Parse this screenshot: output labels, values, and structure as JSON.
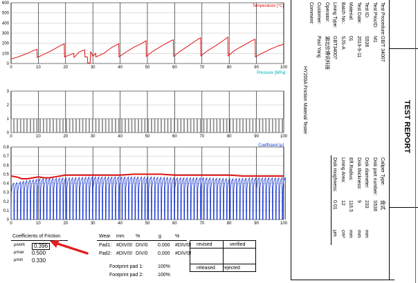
{
  "chart_data": [
    {
      "type": "line",
      "title": "",
      "xlabel": "",
      "ylabel": "Temperature [°C]",
      "xlim": [
        0,
        100
      ],
      "ylim": [
        0,
        600
      ],
      "xticks": [
        0,
        10,
        20,
        30,
        40,
        50,
        60,
        70,
        80,
        90,
        100
      ],
      "yticks": [
        0,
        100,
        200,
        300,
        400,
        500,
        600
      ],
      "grid": true,
      "series": [
        {
          "name": "",
          "color": "#e01010",
          "x": [
            0,
            2,
            4,
            6,
            8,
            9.5,
            9.6,
            12,
            15,
            18,
            19.5,
            19.6,
            22,
            23,
            23.1,
            25,
            27,
            27.1,
            28,
            28.1,
            29,
            29.2,
            30,
            31,
            31.1,
            34,
            37,
            39.5,
            39.6,
            42,
            45,
            48,
            49.5,
            49.6,
            52,
            55,
            58,
            59.5,
            59.6,
            62,
            65,
            68,
            69.5,
            69.6,
            72,
            75,
            78,
            79.5,
            79.6,
            82,
            85,
            88,
            89.5,
            89.6,
            92,
            95,
            98,
            100
          ],
          "y": [
            45,
            60,
            80,
            100,
            125,
            140,
            60,
            90,
            130,
            175,
            195,
            65,
            90,
            100,
            60,
            115,
            135,
            65,
            65,
            5,
            5,
            120,
            70,
            100,
            65,
            100,
            160,
            195,
            65,
            110,
            160,
            200,
            225,
            70,
            120,
            170,
            215,
            235,
            70,
            120,
            175,
            230,
            255,
            75,
            125,
            175,
            230,
            260,
            75,
            130,
            175,
            220,
            240,
            65,
            100,
            140,
            175,
            190
          ]
        }
      ]
    },
    {
      "type": "line",
      "title": "",
      "xlabel": "Pressure [MPa]",
      "ylabel": "",
      "xlim": [
        0,
        100
      ],
      "ylim": [
        0,
        3
      ],
      "xticks": [
        0,
        10,
        20,
        30,
        40,
        50,
        60,
        70,
        80,
        90,
        100
      ],
      "yticks": [
        0,
        1,
        2,
        3
      ],
      "grid": true,
      "series": [
        {
          "name": "",
          "color": "#707070",
          "pattern": "square-pulses",
          "period": 1.2,
          "high": 1.0,
          "low": 0.0,
          "x_range": [
            0,
            100
          ]
        }
      ]
    },
    {
      "type": "line",
      "title": "",
      "xlabel": "",
      "ylabel": "Coefficient [μ]",
      "xlim": [
        0,
        100
      ],
      "ylim": [
        0,
        0.8
      ],
      "xticks": [
        0,
        10,
        20,
        30,
        40,
        50,
        60,
        70,
        80,
        90,
        100
      ],
      "yticks": [
        0,
        0.1,
        0.2,
        0.3,
        0.4,
        0.5,
        0.6,
        0.7,
        0.8
      ],
      "grid": true,
      "series": [
        {
          "name": "",
          "color": "#e01010",
          "x": [
            0,
            2,
            4,
            6,
            8,
            10,
            12,
            14,
            16,
            18,
            20,
            25,
            30,
            35,
            40,
            45,
            50,
            55,
            60,
            65,
            70,
            75,
            80,
            85,
            90,
            95,
            100
          ],
          "y": [
            0.48,
            0.47,
            0.45,
            0.45,
            0.46,
            0.47,
            0.46,
            0.46,
            0.47,
            0.48,
            0.49,
            0.49,
            0.49,
            0.49,
            0.49,
            0.5,
            0.5,
            0.5,
            0.49,
            0.49,
            0.49,
            0.49,
            0.49,
            0.48,
            0.48,
            0.48,
            0.48
          ]
        },
        {
          "name": "",
          "color": "#1030d0",
          "pattern": "engagement-sawtooth",
          "period": 1.2,
          "peak_envelope_x": [
            0,
            5,
            10,
            20,
            30,
            40,
            50,
            60,
            70,
            80,
            90,
            100
          ],
          "peak_envelope_y": [
            0.4,
            0.43,
            0.45,
            0.46,
            0.47,
            0.47,
            0.47,
            0.46,
            0.46,
            0.45,
            0.46,
            0.46
          ],
          "low": 0.0
        }
      ]
    }
  ],
  "report": {
    "title": "TEST REPORT",
    "fields": [
      {
        "label": "Test Procedure:",
        "value": "GB/T 34007"
      },
      {
        "label": "Test ProcID:",
        "value": "M1"
      },
      {
        "label": "Test ID:",
        "value": "S536"
      },
      {
        "label": "Test Date:",
        "value": "2019-9-11"
      },
      {
        "label": "Material:",
        "value": "01"
      },
      {
        "label": "Batch No.:",
        "value": "SJS-A"
      },
      {
        "label": "Lining Type:",
        "value": "GBT34007"
      },
      {
        "label": "Operator:",
        "value": "湖北欣博讯科技"
      },
      {
        "label": "Customer:",
        "value": "Paul Yang"
      },
      {
        "label": "Comment:",
        "value": ""
      }
    ],
    "instrument": "HY200A Friction Material Tester",
    "specs": [
      {
        "label": "Caliper Type:",
        "value": "盘式",
        "unit": ""
      },
      {
        "label": "Disk part number:",
        "value": "S536",
        "unit": ""
      },
      {
        "label": "Disk diameter:",
        "value": "233",
        "unit": "mm"
      },
      {
        "label": "Disk thickness:",
        "value": "9",
        "unit": "mm"
      },
      {
        "label": "Eff.Radius:",
        "value": "116.5",
        "unit": "mm"
      },
      {
        "label": "Lining Area:",
        "value": "12",
        "unit": "cm²"
      },
      {
        "label": "Disk roughness:",
        "value": "0.01",
        "unit": "μm"
      }
    ]
  },
  "friction": {
    "heading": "Coefficients of Friction",
    "rows": [
      {
        "label": "μwork",
        "value": "0.396"
      },
      {
        "label": "μmax",
        "value": "0.500"
      },
      {
        "label": "μmin",
        "value": "0.330"
      }
    ]
  },
  "wear": {
    "headers": [
      "Wear",
      "mm",
      "%",
      "g",
      "%"
    ],
    "rows": [
      {
        "label": "Pad1:",
        "cells": [
          "#DIV/0!",
          "DIV/0",
          "0.000",
          "#DIV/0!"
        ]
      },
      {
        "label": "Pad2:",
        "cells": [
          "#DIV/0!",
          "DIV/0",
          "0.000",
          "#DIV/0!"
        ]
      }
    ],
    "footprints": [
      {
        "label": "Footprint pad 1:",
        "value": "100%"
      },
      {
        "label": "Footprint pad 2:",
        "value": "100%"
      }
    ]
  },
  "signoff": {
    "revised": "revised",
    "verified": "verified",
    "released": "released",
    "rejected": "rejected"
  },
  "annotation": {
    "color": "#e02020"
  }
}
